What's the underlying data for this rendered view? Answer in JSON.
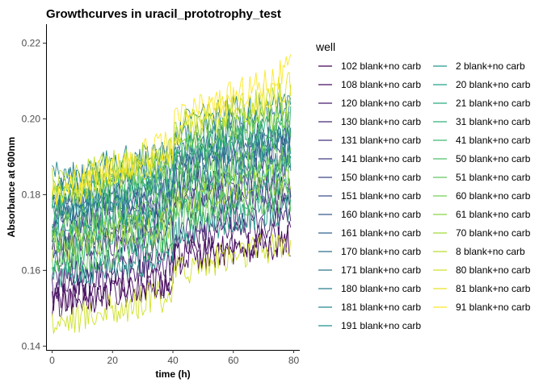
{
  "chart_data": {
    "type": "line",
    "title": "Growthcurves in uracil_prototrophy_test",
    "xlabel": "time (h)",
    "ylabel": "Absorbance at 600nm",
    "xlim": [
      -2,
      82
    ],
    "ylim": [
      0.139,
      0.225
    ],
    "xticks": [
      0,
      20,
      40,
      60,
      80
    ],
    "yticks": [
      0.14,
      0.16,
      0.18,
      0.2,
      0.22
    ],
    "ytick_labels": [
      "0.14",
      "0.16",
      "0.18",
      "0.20",
      "0.22"
    ],
    "grid": false,
    "legend_title": "well",
    "legend_position": "right",
    "palette": "viridis",
    "series_summary": [
      {
        "name": "102 blank+no carb",
        "start": 0.152,
        "end": 0.166
      },
      {
        "name": "108 blank+no carb",
        "start": 0.151,
        "end": 0.168
      },
      {
        "name": "120 blank+no carb",
        "start": 0.156,
        "end": 0.172
      },
      {
        "name": "130 blank+no carb",
        "start": 0.165,
        "end": 0.181
      },
      {
        "name": "131 blank+no carb",
        "start": 0.159,
        "end": 0.175
      },
      {
        "name": "141 blank+no carb",
        "start": 0.17,
        "end": 0.186
      },
      {
        "name": "150 blank+no carb",
        "start": 0.174,
        "end": 0.19
      },
      {
        "name": "151 blank+no carb",
        "start": 0.167,
        "end": 0.182
      },
      {
        "name": "160 blank+no carb",
        "start": 0.176,
        "end": 0.194
      },
      {
        "name": "161 blank+no carb",
        "start": 0.178,
        "end": 0.198
      },
      {
        "name": "170 blank+no carb",
        "start": 0.172,
        "end": 0.188
      },
      {
        "name": "171 blank+no carb",
        "start": 0.182,
        "end": 0.202
      },
      {
        "name": "180 blank+no carb",
        "start": 0.176,
        "end": 0.196
      },
      {
        "name": "181 blank+no carb",
        "start": 0.184,
        "end": 0.206
      },
      {
        "name": "191 blank+no carb",
        "start": 0.175,
        "end": 0.195
      },
      {
        "name": "2 blank+no carb",
        "start": 0.158,
        "end": 0.176
      },
      {
        "name": "20 blank+no carb",
        "start": 0.17,
        "end": 0.191
      },
      {
        "name": "21 blank+no carb",
        "start": 0.163,
        "end": 0.181
      },
      {
        "name": "31 blank+no carb",
        "start": 0.18,
        "end": 0.2
      },
      {
        "name": "41 blank+no carb",
        "start": 0.168,
        "end": 0.186
      },
      {
        "name": "50 blank+no carb",
        "start": 0.177,
        "end": 0.197
      },
      {
        "name": "51 blank+no carb",
        "start": 0.162,
        "end": 0.179
      },
      {
        "name": "60 blank+no carb",
        "start": 0.171,
        "end": 0.19
      },
      {
        "name": "61 blank+no carb",
        "start": 0.181,
        "end": 0.203
      },
      {
        "name": "70 blank+no carb",
        "start": 0.166,
        "end": 0.184
      },
      {
        "name": "8 blank+no carb",
        "start": 0.183,
        "end": 0.207
      },
      {
        "name": "80 blank+no carb",
        "start": 0.146,
        "end": 0.168
      },
      {
        "name": "81 blank+no carb",
        "start": 0.179,
        "end": 0.212
      },
      {
        "name": "91 blank+no carb",
        "start": 0.18,
        "end": 0.218
      }
    ]
  }
}
